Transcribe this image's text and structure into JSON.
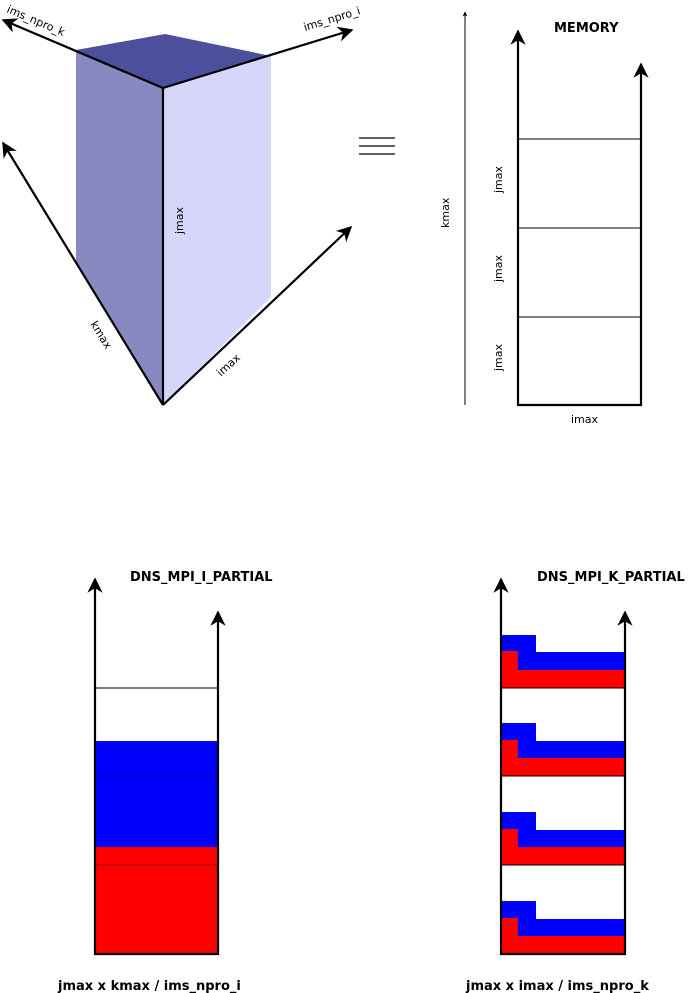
{
  "cube": {
    "axis_top_left": "ims_npro_k",
    "axis_top_right": "ims_npro_i",
    "axis_vertical": "jmax",
    "axis_left": "kmax",
    "axis_right": "imax",
    "colors": {
      "top": "#4b4f9c",
      "left": "#8789c0",
      "right": "#d6d6fb"
    }
  },
  "equivalence_symbol": "≡",
  "memory": {
    "title": "MEMORY",
    "outer_axis_label": "kmax",
    "bottom_label": "imax",
    "block_labels": [
      "jmax",
      "jmax",
      "jmax"
    ]
  },
  "partial_i": {
    "title": "DNS_MPI_I_PARTIAL",
    "caption": "jmax x kmax / ims_npro_i",
    "colors": {
      "blue": "#0000ff",
      "red": "#ff0000"
    }
  },
  "partial_k": {
    "title": "DNS_MPI_K_PARTIAL",
    "caption": "jmax x imax / ims_npro_k",
    "colors": {
      "blue": "#0000ff",
      "red": "#ff0000"
    }
  }
}
